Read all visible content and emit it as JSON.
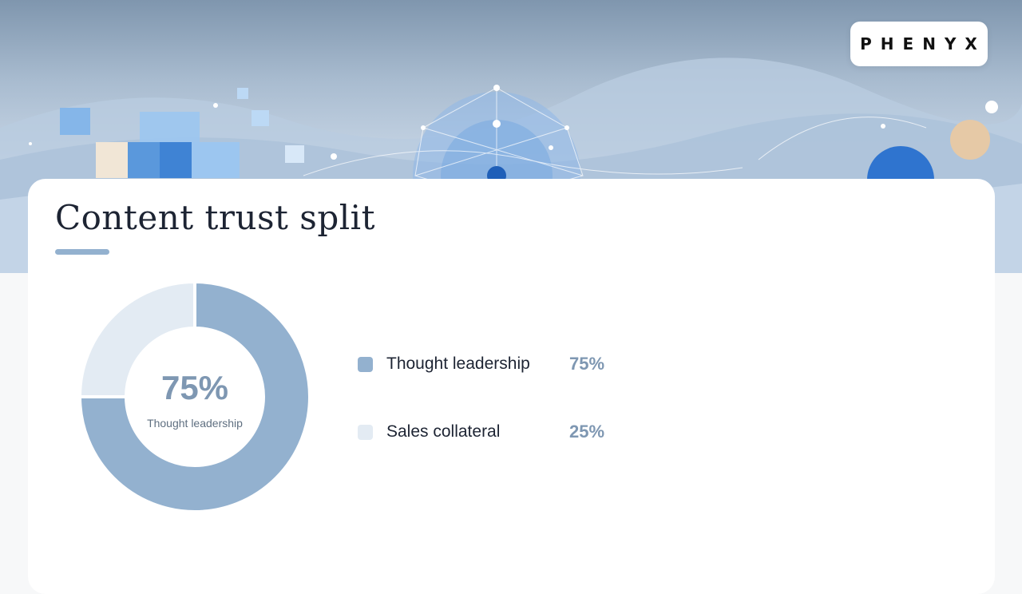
{
  "brand": {
    "logo_text": "PHENYX"
  },
  "colors": {
    "accent": "#93b1cf",
    "slice_primary": "#93b1cf",
    "slice_secondary": "#e3ebf3",
    "title": "#1d2433",
    "value": "#7e97b2"
  },
  "chart_data": {
    "type": "pie",
    "title": "Content trust split",
    "donut": true,
    "center": {
      "value": "75%",
      "label": "Thought leadership"
    },
    "categories": [
      "Thought leadership",
      "Sales collateral"
    ],
    "values": [
      75,
      25
    ],
    "value_labels": [
      "75%",
      "25%"
    ],
    "colors": [
      "#93b1cf",
      "#e3ebf3"
    ],
    "legend": "right"
  }
}
